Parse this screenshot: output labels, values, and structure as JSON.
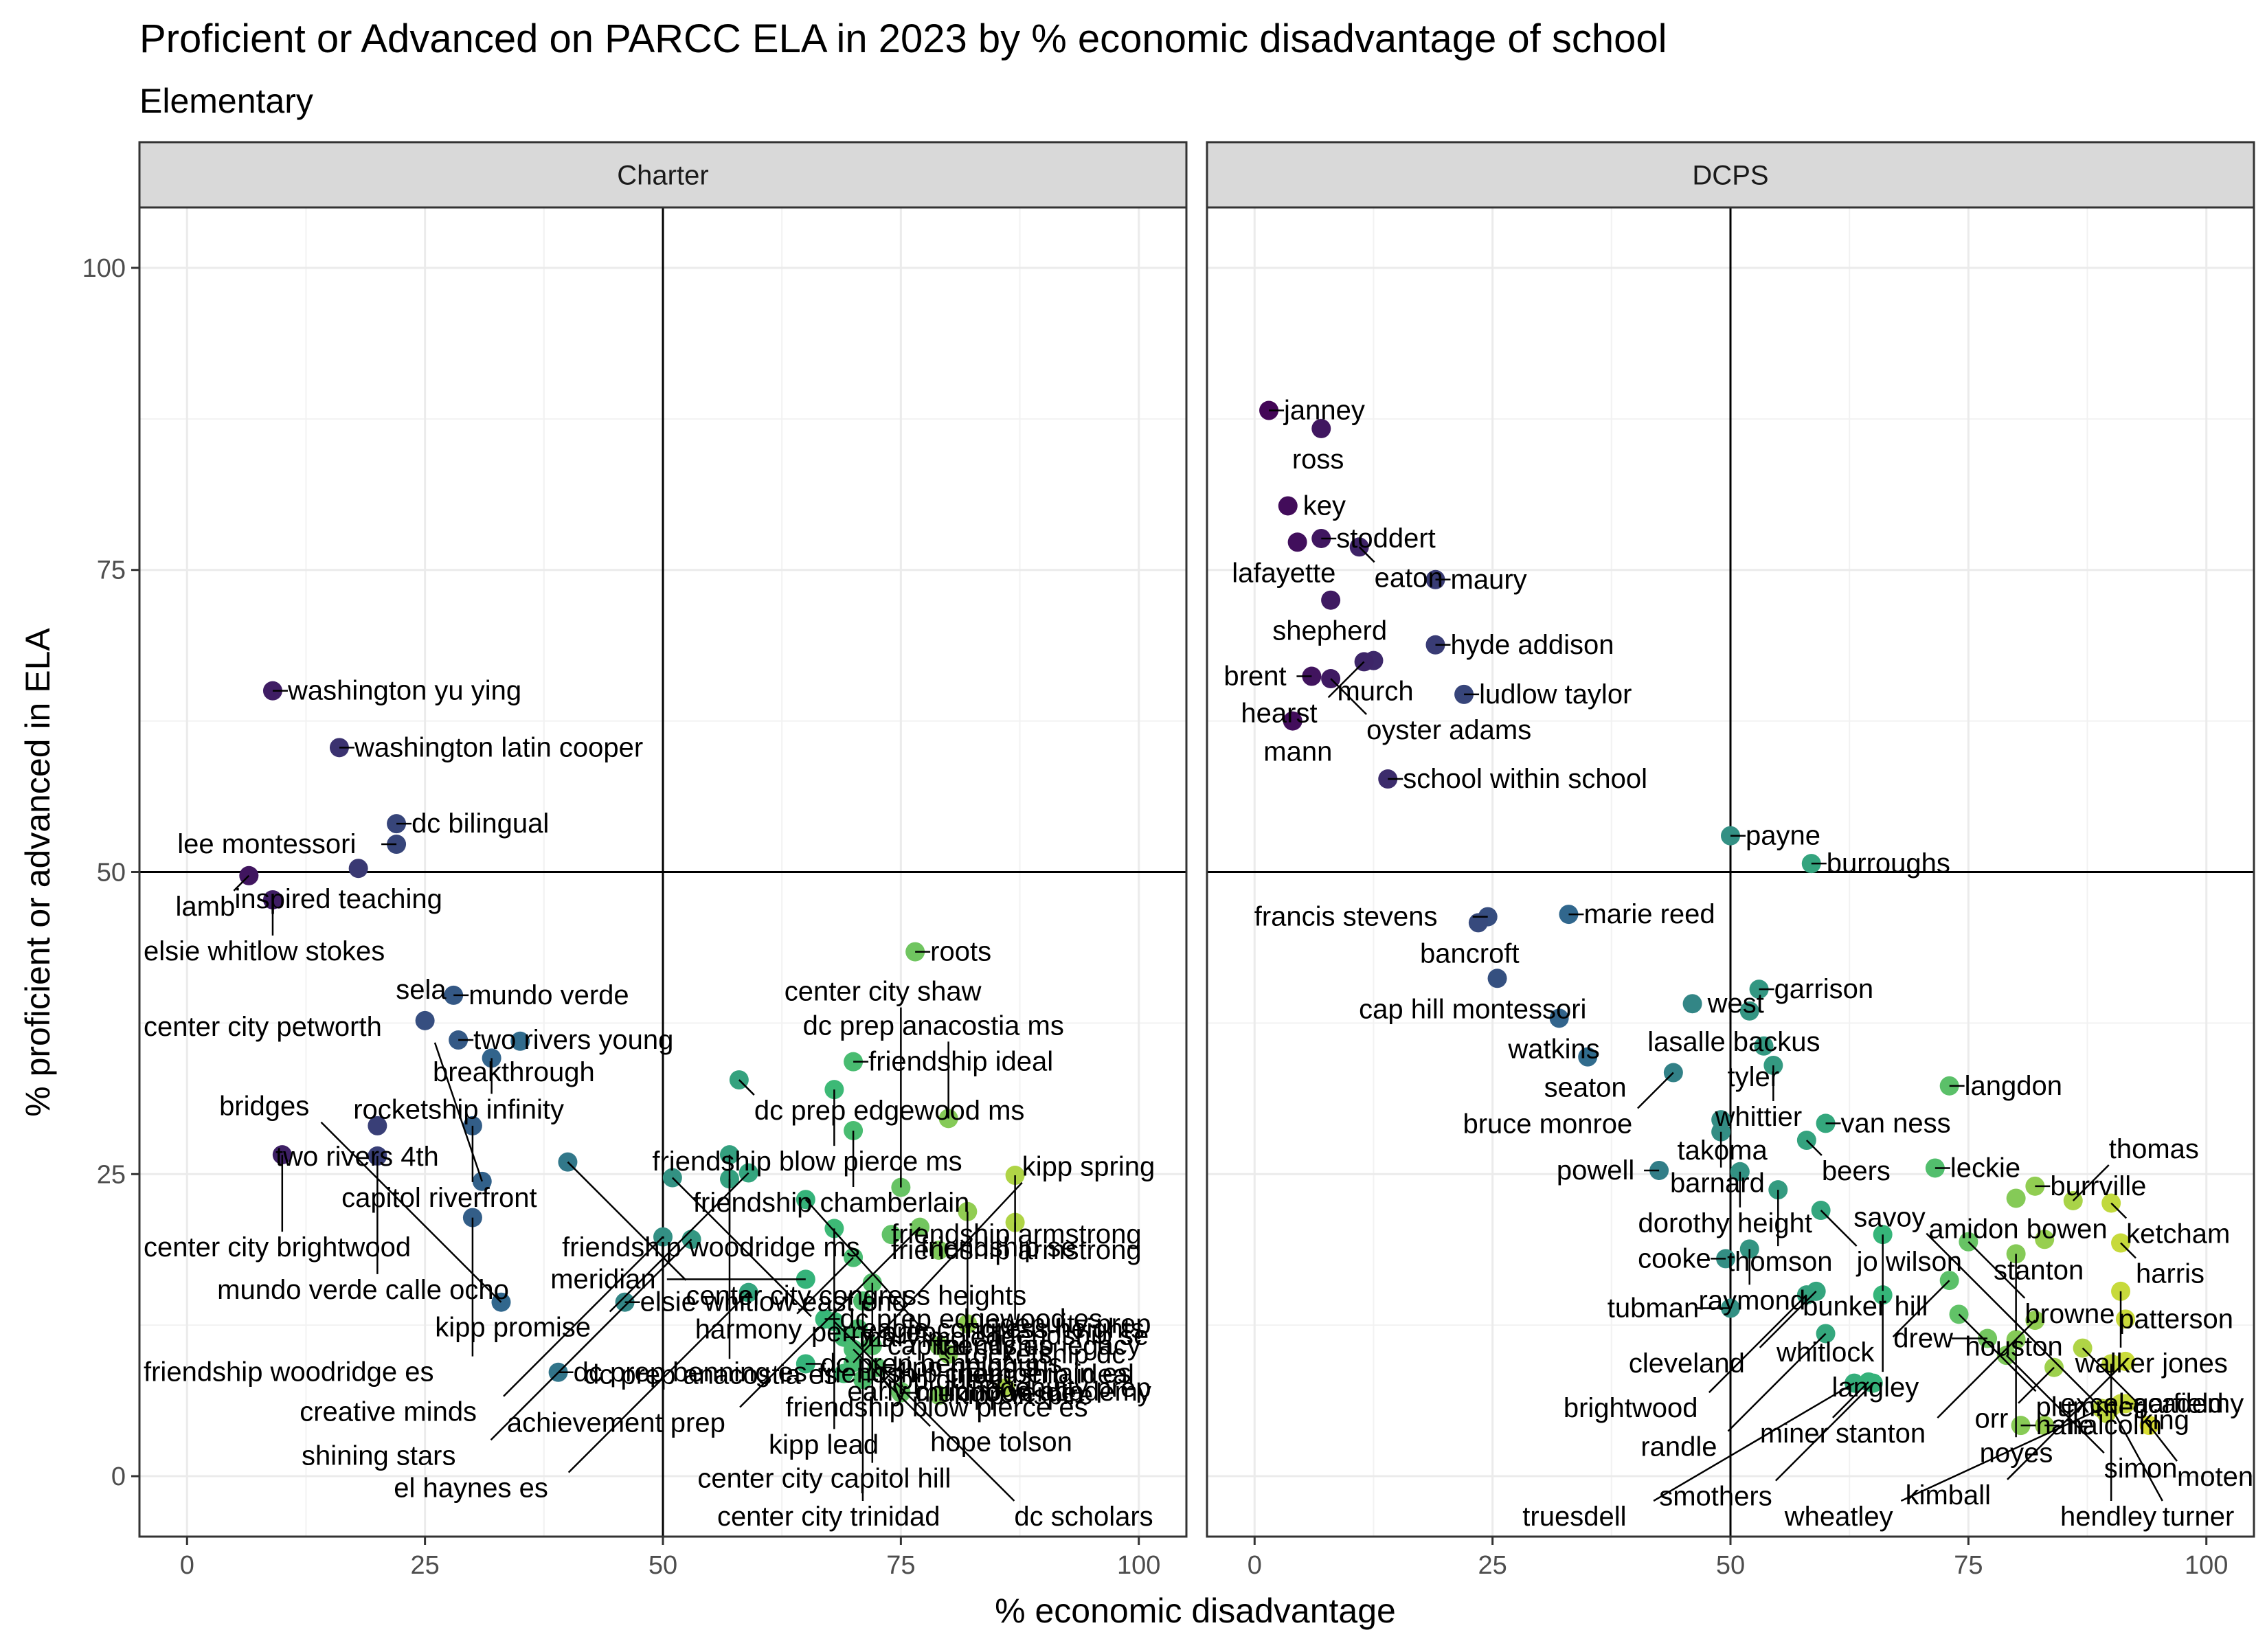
{
  "chart_data": {
    "type": "scatter",
    "title": "Proficient or Advanced on PARCC ELA in 2023 by % economic disadvantage of school",
    "subtitle": "Elementary",
    "xlabel": "% economic disadvantage",
    "ylabel": "% proficient or advanced in ELA",
    "xlim": [
      -5,
      105
    ],
    "ylim": [
      -5,
      105
    ],
    "xticks": [
      0,
      25,
      50,
      75,
      100
    ],
    "yticks": [
      0,
      25,
      50,
      75,
      100
    ],
    "reference_lines": {
      "x": 50,
      "y": 50
    },
    "grid": true,
    "legend": "none",
    "color_scale": [
      "#440154",
      "#31688e",
      "#35b779",
      "#fde725"
    ],
    "panels": [
      {
        "name": "Charter",
        "points": [
          {
            "label": "washington yu ying",
            "x": 9,
            "y": 65
          },
          {
            "label": "washington latin cooper",
            "x": 16,
            "y": 60.3
          },
          {
            "label": "dc bilingual",
            "x": 22,
            "y": 54
          },
          {
            "label": "lee montessori",
            "x": 22,
            "y": 52.3
          },
          {
            "label": "inspired teaching",
            "x": 18,
            "y": 50.3
          },
          {
            "label": "lamb",
            "x": 6.5,
            "y": 49.7
          },
          {
            "label": "elsie whitlow stokes",
            "x": 9,
            "y": 47.7
          },
          {
            "label": "roots",
            "x": 76.5,
            "y": 43.4
          },
          {
            "label": "mundo verde",
            "x": 28,
            "y": 39.8
          },
          {
            "label": "sela",
            "x": 25,
            "y": 37.7
          },
          {
            "label": "breakthrough",
            "x": 35,
            "y": 36
          },
          {
            "label": "two rivers young",
            "x": 28.5,
            "y": 36.1
          },
          {
            "label": "rocketship infinity",
            "x": 32,
            "y": 34.6
          },
          {
            "label": "friendship ideal",
            "x": 70,
            "y": 34.3
          },
          {
            "label": "dc prep edgewood ms",
            "x": 58,
            "y": 32.8
          },
          {
            "label": "friendship blow pierce ms",
            "x": 68,
            "y": 32
          },
          {
            "label": "two rivers 4th",
            "x": 20,
            "y": 29
          },
          {
            "label": "capitol riverfront",
            "x": 30,
            "y": 29
          },
          {
            "label": "friendship chamberlain",
            "x": 70,
            "y": 28.6
          },
          {
            "label": "dc prep anacostia ms",
            "x": 80,
            "y": 29.6
          },
          {
            "label": "mundo verde calle ocho",
            "x": 20,
            "y": 26.5
          },
          {
            "label": "center city congress heights",
            "x": 40,
            "y": 26
          },
          {
            "label": "friendship woodridge ms",
            "x": 57,
            "y": 26.6
          },
          {
            "label": "kipp promise",
            "x": 59,
            "y": 25.1
          },
          {
            "label": "center city brightwood",
            "x": 10,
            "y": 26.6
          },
          {
            "label": "center city petworth",
            "x": 31,
            "y": 24.4
          },
          {
            "label": "perry prep",
            "x": 51,
            "y": 24.7
          },
          {
            "label": "friendship se",
            "x": 87,
            "y": 24.9
          },
          {
            "label": "center city shaw",
            "x": 75,
            "y": 23.9
          },
          {
            "label": "friendship woodridge es",
            "x": 30,
            "y": 21.4
          },
          {
            "label": "dc prep anacostia es",
            "x": 57,
            "y": 24.6
          },
          {
            "label": "friendship ideal",
            "x": 65,
            "y": 22.9
          },
          {
            "label": "friendship blow pierce es",
            "x": 82,
            "y": 21.9
          },
          {
            "label": "creative minds",
            "x": 50,
            "y": 19.8
          },
          {
            "label": "achievement prep",
            "x": 77,
            "y": 20.6
          },
          {
            "label": "friendship armstrong",
            "x": 74,
            "y": 20
          },
          {
            "label": "kipp lead",
            "x": 68,
            "y": 20.5
          },
          {
            "label": "shining stars",
            "x": 53,
            "y": 19.6
          },
          {
            "label": "el haynes es",
            "x": 59,
            "y": 15.2
          },
          {
            "label": "meridian",
            "x": 65,
            "y": 16.3
          },
          {
            "label": "harmony",
            "x": 70,
            "y": 18.1
          },
          {
            "label": "friendship armstrong",
            "x": 79,
            "y": 18.7
          },
          {
            "label": "friendship se",
            "x": 87,
            "y": 21
          },
          {
            "label": "elsie whitlow east end",
            "x": 46,
            "y": 14.4
          },
          {
            "label": "bridges",
            "x": 33,
            "y": 14.4
          },
          {
            "label": "dc prep edgewood es",
            "x": 67,
            "y": 13
          },
          {
            "label": "center city capitol hill",
            "x": 72,
            "y": 16
          },
          {
            "label": "center city trinidad",
            "x": 71,
            "y": 14.5
          },
          {
            "label": "dc scholars",
            "x": 68,
            "y": 12.8
          },
          {
            "label": "dc prep benning es",
            "x": 39,
            "y": 8.6
          },
          {
            "label": "dc prep benning ms",
            "x": 65,
            "y": 9.3
          },
          {
            "label": "kipp spring",
            "x": 70,
            "y": 9.4
          },
          {
            "label": "ingenuity prep",
            "x": 82,
            "y": 12.6
          },
          {
            "label": "capital city es",
            "x": 72,
            "y": 10.8
          },
          {
            "label": "friendship chamberlain es",
            "x": 69,
            "y": 8.5
          },
          {
            "label": "friendship legacy",
            "x": 79,
            "y": 10.8
          },
          {
            "label": "rocketship dc",
            "x": 80,
            "y": 10.1
          },
          {
            "label": "mundo verde",
            "x": 75,
            "y": 6.9
          },
          {
            "label": "kipp quest",
            "x": 71,
            "y": 8
          },
          {
            "label": "kipp heights",
            "x": 72.5,
            "y": 9
          },
          {
            "label": "kipp inspire",
            "x": 79,
            "y": 6.7
          },
          {
            "label": "ingenuity prep",
            "x": 86,
            "y": 7.3
          },
          {
            "label": "mary mcleod",
            "x": 69,
            "y": 11.5
          },
          {
            "label": "eagle congress heights",
            "x": 70.5,
            "y": 12.2
          },
          {
            "label": "hope tolson",
            "x": 70,
            "y": 10.5
          },
          {
            "label": "early childhood academy",
            "x": 75,
            "y": 7
          }
        ]
      },
      {
        "name": "DCPS",
        "points": [
          {
            "label": "janney",
            "x": 1.5,
            "y": 88.2
          },
          {
            "label": "ross",
            "x": 7,
            "y": 86.7
          },
          {
            "label": "key",
            "x": 3.5,
            "y": 80.3
          },
          {
            "label": "stoddert",
            "x": 7,
            "y": 77.6
          },
          {
            "label": "lafayette",
            "x": 4.5,
            "y": 77.3
          },
          {
            "label": "eaton",
            "x": 11,
            "y": 76.9
          },
          {
            "label": "maury",
            "x": 19,
            "y": 74.2
          },
          {
            "label": "shepherd",
            "x": 8,
            "y": 72.5
          },
          {
            "label": "murch",
            "x": 12.5,
            "y": 67.5
          },
          {
            "label": "hyde addison",
            "x": 19,
            "y": 68.8
          },
          {
            "label": "hearst",
            "x": 11.5,
            "y": 67.4
          },
          {
            "label": "brent",
            "x": 6,
            "y": 66.2
          },
          {
            "label": "oyster adams",
            "x": 8,
            "y": 66
          },
          {
            "label": "ludlow taylor",
            "x": 22,
            "y": 64.7
          },
          {
            "label": "mann",
            "x": 4,
            "y": 62.5
          },
          {
            "label": "school within school",
            "x": 14,
            "y": 57.7
          },
          {
            "label": "payne",
            "x": 50,
            "y": 53
          },
          {
            "label": "burroughs",
            "x": 58.5,
            "y": 50.7
          },
          {
            "label": "francis stevens",
            "x": 24.5,
            "y": 46.3
          },
          {
            "label": "marie reed",
            "x": 33,
            "y": 46.5
          },
          {
            "label": "bancroft",
            "x": 23.5,
            "y": 45.8
          },
          {
            "label": "garrison",
            "x": 53,
            "y": 40.3
          },
          {
            "label": "cap hill montessori",
            "x": 25.5,
            "y": 41.2
          },
          {
            "label": "west",
            "x": 46,
            "y": 39.1
          },
          {
            "label": "lasalle backus",
            "x": 52,
            "y": 38.5
          },
          {
            "label": "watkins",
            "x": 32,
            "y": 37.9
          },
          {
            "label": "tyler",
            "x": 53.5,
            "y": 35.6
          },
          {
            "label": "whittier",
            "x": 54.5,
            "y": 34
          },
          {
            "label": "seaton",
            "x": 35,
            "y": 34.7
          },
          {
            "label": "langdon",
            "x": 73,
            "y": 32.3
          },
          {
            "label": "bruce monroe",
            "x": 44,
            "y": 33.4
          },
          {
            "label": "takoma",
            "x": 49,
            "y": 29.5
          },
          {
            "label": "van ness",
            "x": 60,
            "y": 29.2
          },
          {
            "label": "barnard",
            "x": 49,
            "y": 28.5
          },
          {
            "label": "beers",
            "x": 58,
            "y": 27.8
          },
          {
            "label": "leckie",
            "x": 71.5,
            "y": 25.5
          },
          {
            "label": "burrville",
            "x": 82,
            "y": 24
          },
          {
            "label": "powell",
            "x": 42.5,
            "y": 25.3
          },
          {
            "label": "dorothy height",
            "x": 51,
            "y": 25.2
          },
          {
            "label": "amidon bowen",
            "x": 80,
            "y": 23
          },
          {
            "label": "thomas",
            "x": 86,
            "y": 22.8
          },
          {
            "label": "ketcham",
            "x": 90,
            "y": 22.6
          },
          {
            "label": "thomson",
            "x": 55,
            "y": 23.7
          },
          {
            "label": "jo wilson",
            "x": 59.5,
            "y": 22
          },
          {
            "label": "harris",
            "x": 91,
            "y": 19.3
          },
          {
            "label": "browne",
            "x": 75,
            "y": 19.4
          },
          {
            "label": "bunker hill",
            "x": 66,
            "y": 20
          },
          {
            "label": "raymond",
            "x": 52,
            "y": 18.8
          },
          {
            "label": "houston",
            "x": 80,
            "y": 18.4
          },
          {
            "label": "stanton",
            "x": 83,
            "y": 19.6
          },
          {
            "label": "walker jones",
            "x": 91,
            "y": 15.3
          },
          {
            "label": "cooke",
            "x": 49.5,
            "y": 18
          },
          {
            "label": "cleveland",
            "x": 59,
            "y": 15.3
          },
          {
            "label": "langley",
            "x": 66,
            "y": 15
          },
          {
            "label": "whitlock",
            "x": 73,
            "y": 16.2
          },
          {
            "label": "patterson",
            "x": 91.5,
            "y": 13
          },
          {
            "label": "tubman",
            "x": 50,
            "y": 13.9
          },
          {
            "label": "brightwood",
            "x": 58,
            "y": 15
          },
          {
            "label": "randle",
            "x": 60,
            "y": 11.8
          },
          {
            "label": "plummer",
            "x": 74,
            "y": 13.4
          },
          {
            "label": "drew",
            "x": 77,
            "y": 11.4
          },
          {
            "label": "stanton",
            "x": 82,
            "y": 12.9
          },
          {
            "label": "kimball",
            "x": 91.5,
            "y": 9.5
          },
          {
            "label": "smothers",
            "x": 65,
            "y": 7.7
          },
          {
            "label": "noyes",
            "x": 80,
            "y": 11.3
          },
          {
            "label": "king",
            "x": 87,
            "y": 10.6
          },
          {
            "label": "simon",
            "x": 79,
            "y": 10
          },
          {
            "label": "hendley",
            "x": 90,
            "y": 9.3
          },
          {
            "label": "truesdell",
            "x": 63,
            "y": 7.7
          },
          {
            "label": "miner",
            "x": 64.5,
            "y": 7.8
          },
          {
            "label": "orr",
            "x": 84,
            "y": 9
          },
          {
            "label": "garfield",
            "x": 91.5,
            "y": 6
          },
          {
            "label": "nalle",
            "x": 80.5,
            "y": 4.2
          },
          {
            "label": "malcolm",
            "x": 83,
            "y": 4.2
          },
          {
            "label": "moten",
            "x": 94,
            "y": 4.2
          },
          {
            "label": "wheatley",
            "x": 89,
            "y": 5.6
          },
          {
            "label": "savoy",
            "x": 89.5,
            "y": 5.2
          },
          {
            "label": "turner",
            "x": 90,
            "y": 5.7
          },
          {
            "label": "excel academy",
            "x": 91,
            "y": 6
          }
        ]
      }
    ]
  }
}
